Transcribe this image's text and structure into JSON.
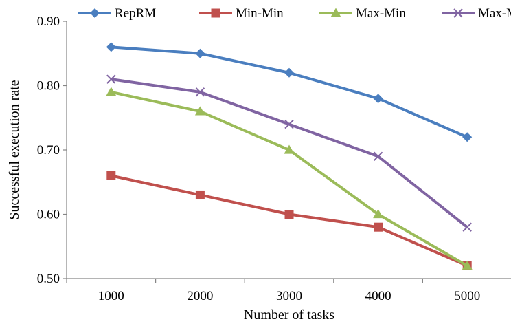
{
  "chart_data": {
    "type": "line",
    "categories": [
      "1000",
      "2000",
      "3000",
      "4000",
      "5000"
    ],
    "xlabel": "Number of tasks",
    "ylabel": "Successful execution rate",
    "ylim": [
      0.5,
      0.9
    ],
    "yticks": [
      "0.50",
      "0.60",
      "0.70",
      "0.80",
      "0.90"
    ],
    "ytick_values": [
      0.5,
      0.6,
      0.7,
      0.8,
      0.9
    ],
    "grid": false,
    "legend_position": "top",
    "series": [
      {
        "name": "RepRM",
        "values": [
          0.86,
          0.85,
          0.82,
          0.78,
          0.72
        ],
        "color": "#4a7ebf",
        "marker": "diamond"
      },
      {
        "name": "Min-Min",
        "values": [
          0.66,
          0.63,
          0.6,
          0.58,
          0.52
        ],
        "color": "#c0504d",
        "marker": "square"
      },
      {
        "name": "Max-Min",
        "values": [
          0.79,
          0.76,
          0.7,
          0.6,
          0.52
        ],
        "color": "#9bbb59",
        "marker": "triangle"
      },
      {
        "name": "Max-Max",
        "values": [
          0.81,
          0.79,
          0.74,
          0.69,
          0.58
        ],
        "color": "#8064a2",
        "marker": "x"
      }
    ]
  }
}
